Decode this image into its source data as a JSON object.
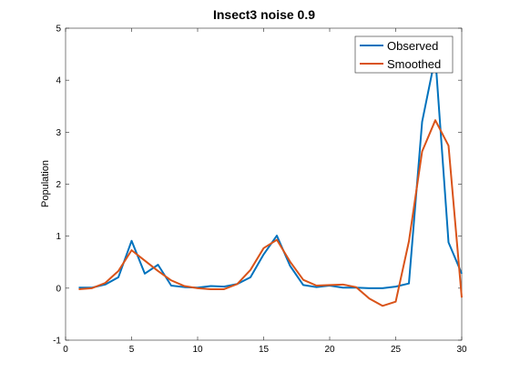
{
  "chart_data": {
    "type": "line",
    "title": "Insect3 noise 0.9",
    "xlabel": "",
    "ylabel": "Population",
    "xlim": [
      0,
      30
    ],
    "ylim": [
      -1,
      5
    ],
    "xticks": [
      "0",
      "5",
      "10",
      "15",
      "20",
      "25",
      "30"
    ],
    "yticks": [
      "-1",
      "0",
      "1",
      "2",
      "3",
      "4",
      "5"
    ],
    "grid": false,
    "legend_position": "top-right",
    "x": [
      1,
      2,
      3,
      4,
      5,
      6,
      7,
      8,
      9,
      10,
      11,
      12,
      13,
      14,
      15,
      16,
      17,
      18,
      19,
      20,
      21,
      22,
      23,
      24,
      25,
      26,
      27,
      28,
      29,
      30
    ],
    "series": [
      {
        "name": "Observed",
        "color": "#0072BD",
        "values": [
          0.01,
          0.01,
          0.07,
          0.21,
          0.91,
          0.28,
          0.45,
          0.05,
          0.02,
          0.01,
          0.04,
          0.03,
          0.08,
          0.21,
          0.65,
          1.01,
          0.43,
          0.06,
          0.02,
          0.05,
          0.01,
          0.01,
          0.0,
          0.0,
          0.03,
          0.09,
          3.2,
          4.45,
          0.88,
          0.28
        ]
      },
      {
        "name": "Smoothed",
        "color": "#D95319",
        "values": [
          -0.02,
          0.0,
          0.1,
          0.33,
          0.73,
          0.53,
          0.33,
          0.15,
          0.04,
          0.0,
          -0.02,
          -0.02,
          0.08,
          0.35,
          0.77,
          0.93,
          0.51,
          0.16,
          0.05,
          0.06,
          0.07,
          0.02,
          -0.2,
          -0.34,
          -0.26,
          0.9,
          2.63,
          3.23,
          2.74,
          -0.18
        ]
      }
    ]
  }
}
